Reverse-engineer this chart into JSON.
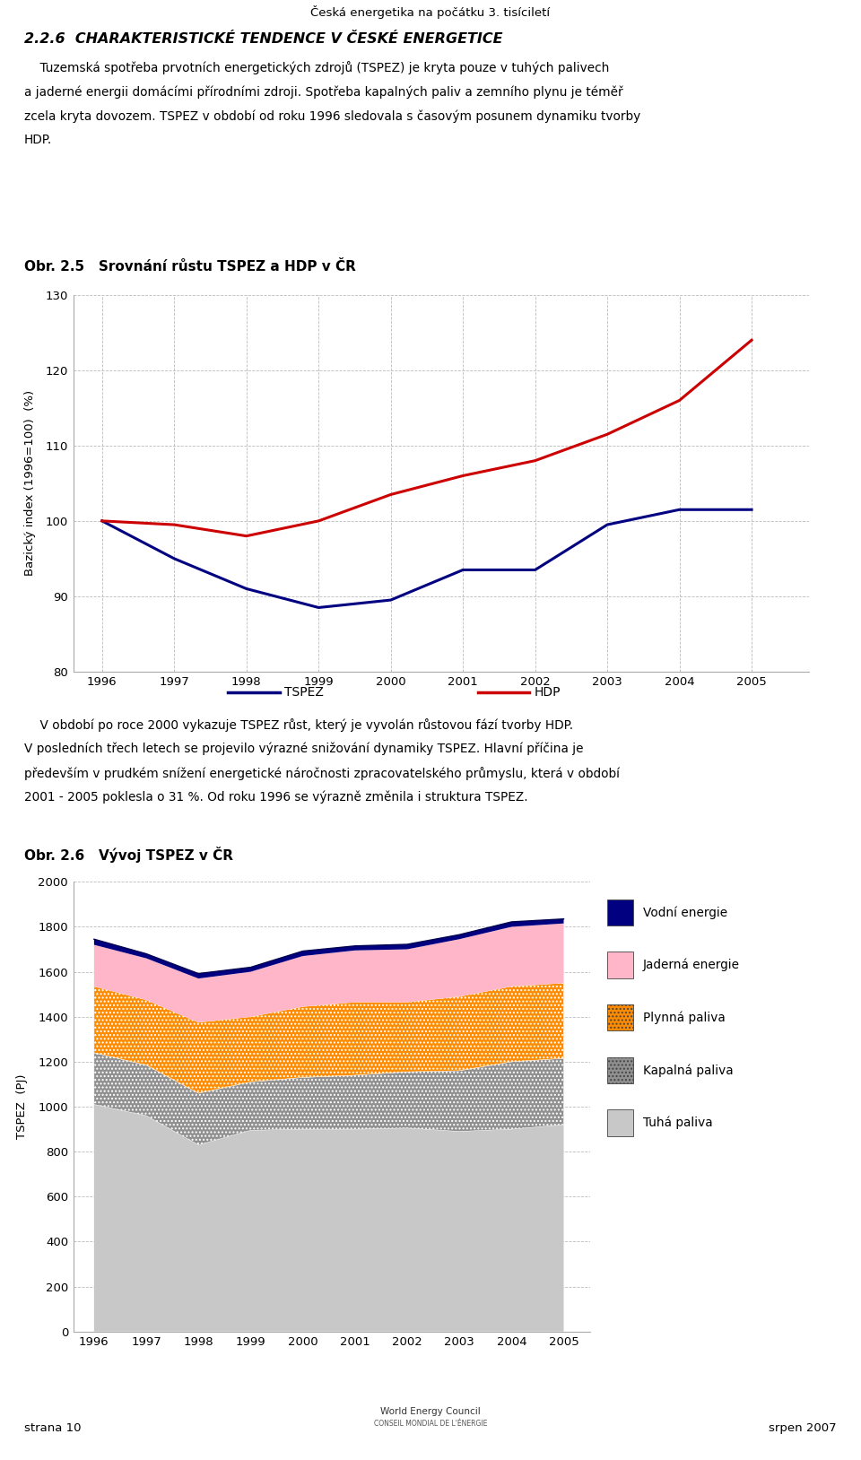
{
  "page_title": "Česká energetika na počátku 3. tisíciletí",
  "section_title": "2.2.6  CHARAKTERISTICKÉ TENDENCE V ČESKÉ ENERGETICE",
  "para1_lines": [
    "    Tuzemská spotřeba prvotních energetických zdrojů (TSPEZ) je kryta pouze v tuhých palivech",
    "a jaderné energii domácími přírodními zdroji. Spotřeba kapalných paliv a zemního plynu je téměř",
    "zcela kryta dovozem. TSPEZ v období od roku 1996 sledovala s časovým posunem dynamiku tvorby",
    "HDP."
  ],
  "chart1_title": "Obr. 2.5   Srovnání růstu TSPEZ a HDP v ČR",
  "chart1_years": [
    1996,
    1997,
    1998,
    1999,
    2000,
    2001,
    2002,
    2003,
    2004,
    2005
  ],
  "chart1_tspez": [
    100,
    95.0,
    91.0,
    88.5,
    89.5,
    93.5,
    93.5,
    99.5,
    101.5,
    101.5
  ],
  "chart1_hdp": [
    100,
    99.5,
    98.0,
    100.0,
    103.5,
    106.0,
    108.0,
    111.5,
    116.0,
    124.0
  ],
  "chart1_ylabel": "Bazický index (1996=100)  (%)",
  "chart1_ylim": [
    80,
    130
  ],
  "chart1_yticks": [
    80,
    90,
    100,
    110,
    120,
    130
  ],
  "chart1_tspez_color": "#000080",
  "chart1_hdp_color": "#cc0000",
  "para2_lines": [
    "    V období po roce 2000 vykazuje TSPEZ růst, který je vyvolán růstovou fází tvorby HDP.",
    "V posledních třech letech se projevilo výrazné snižování dynamiky TSPEZ. Hlavní příčina je",
    "především v prudkém snížení energetické náročnosti zpracovatelského průmyslu, která v období",
    "2001 - 2005 poklesla o 31 %. Od roku 1996 se výrazně změnila i struktura TSPEZ."
  ],
  "chart2_title": "Obr. 2.6   Vývoj TSPEZ v ČR",
  "chart2_years": [
    1996,
    1997,
    1998,
    1999,
    2000,
    2001,
    2002,
    2003,
    2004,
    2005
  ],
  "chart2_tuha": [
    1010,
    960,
    830,
    895,
    900,
    900,
    905,
    890,
    900,
    920
  ],
  "chart2_kapalna": [
    230,
    225,
    230,
    215,
    230,
    240,
    250,
    270,
    300,
    295
  ],
  "chart2_plynna": [
    295,
    290,
    315,
    290,
    315,
    325,
    310,
    330,
    335,
    335
  ],
  "chart2_jaderna": [
    185,
    185,
    195,
    200,
    225,
    230,
    235,
    255,
    265,
    265
  ],
  "chart2_vodni": [
    25,
    20,
    22,
    20,
    22,
    20,
    22,
    20,
    22,
    20
  ],
  "chart2_ylabel": "TSPEZ  (PJ)",
  "chart2_ylim": [
    0,
    2000
  ],
  "chart2_yticks": [
    0,
    200,
    400,
    600,
    800,
    1000,
    1200,
    1400,
    1600,
    1800,
    2000
  ],
  "chart2_tuha_color": "#c8c8c8",
  "chart2_kapalna_color": "#909090",
  "chart2_plynna_color": "#ff8c00",
  "chart2_jaderna_color": "#ffb6c8",
  "chart2_vodni_color": "#000080",
  "footer_left": "strana 10",
  "footer_right": "srpen 2007"
}
